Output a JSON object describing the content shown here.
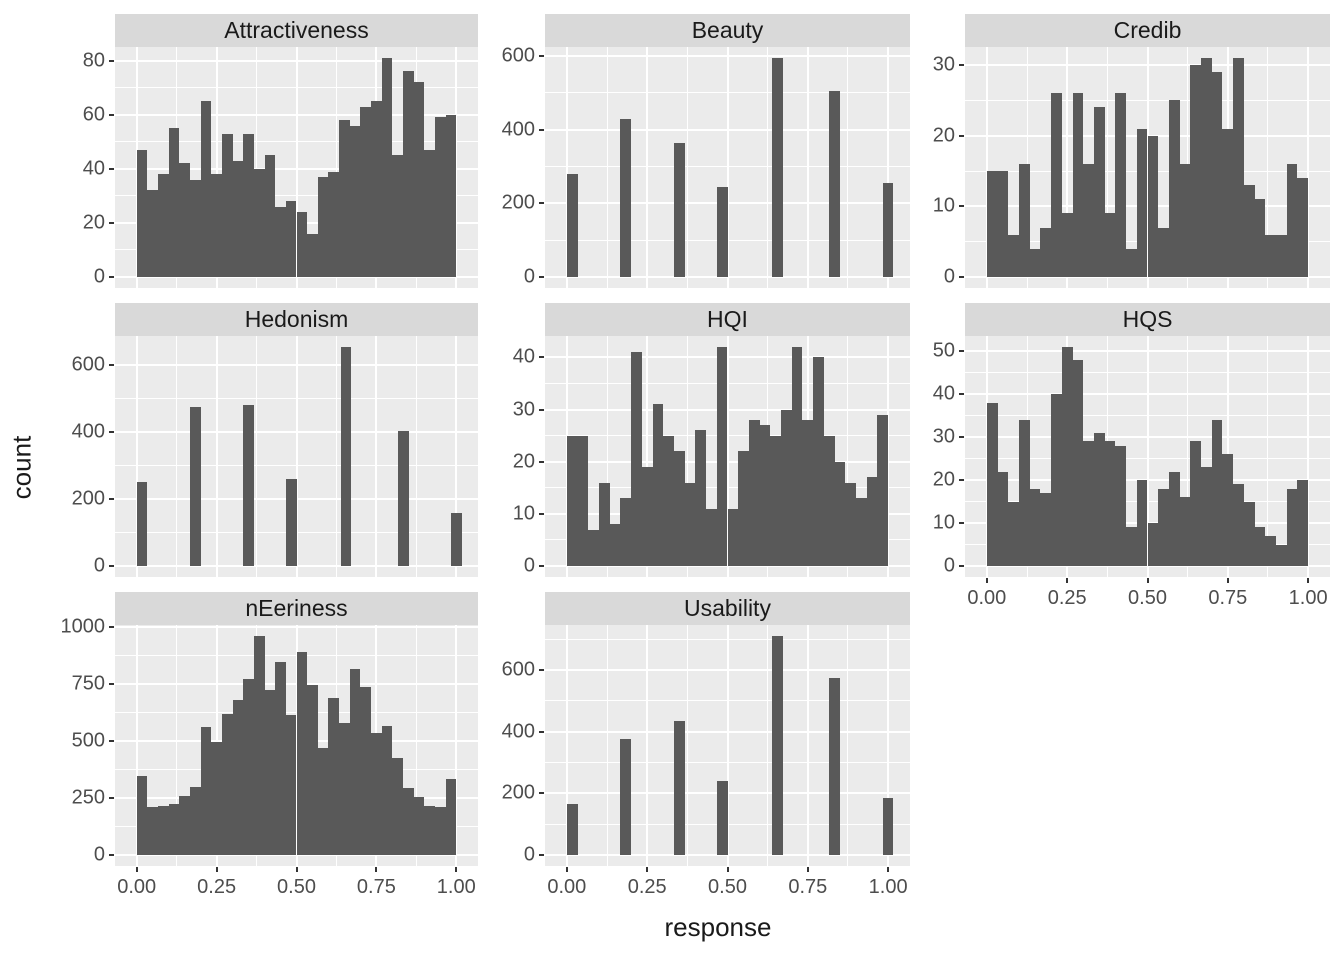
{
  "figure": {
    "y_axis_title": "count",
    "x_axis_title": "response",
    "colors": {
      "background": "#FFFFFF",
      "panel_bg": "#EBEBEB",
      "strip_bg": "#D9D9D9",
      "bar_fill": "#595959",
      "gridline": "#FFFFFF",
      "axis_text": "#4D4D4D",
      "title_text": "#1A1A1A",
      "tick_mark": "#333333"
    },
    "x_ticks": {
      "values": [
        0,
        0.25,
        0.5,
        0.75,
        1.0
      ],
      "labels": [
        "0.00",
        "0.25",
        "0.50",
        "0.75",
        "1.00"
      ]
    },
    "x_minor_ticks": [
      0.125,
      0.375,
      0.625,
      0.875
    ],
    "x_range_note": "response scale 0 to 1, 30 histogram bins, 5% expansion"
  },
  "chart_data": [
    {
      "type": "bar",
      "title": "Attractiveness",
      "row": 0,
      "col": 0,
      "xlabel": "response",
      "ylabel": "count",
      "yticks": [
        0,
        20,
        40,
        60,
        80
      ],
      "ymax": 81,
      "bin_width": 0.0333,
      "counts": [
        47,
        32,
        38,
        55,
        42,
        36,
        65,
        38,
        53,
        43,
        53,
        40,
        45,
        26,
        28,
        24,
        16,
        37,
        39,
        58,
        56,
        63,
        65,
        81,
        45,
        76,
        72,
        47,
        59,
        60
      ],
      "show_x_axis": false
    },
    {
      "type": "bar",
      "title": "Beauty",
      "row": 0,
      "col": 1,
      "xlabel": "response",
      "ylabel": "count",
      "yticks": [
        0,
        200,
        400,
        600
      ],
      "ymax": 595,
      "bin_width": 0.0333,
      "centers": [
        0.017,
        0.183,
        0.35,
        0.485,
        0.655,
        0.834,
        1.0
      ],
      "counts": [
        280,
        430,
        365,
        245,
        595,
        505,
        255
      ],
      "show_x_axis": false
    },
    {
      "type": "bar",
      "title": "Credib",
      "row": 0,
      "col": 2,
      "xlabel": "response",
      "ylabel": "count",
      "yticks": [
        0,
        10,
        20,
        30
      ],
      "ymax": 31,
      "bin_width": 0.0333,
      "counts": [
        15,
        15,
        6,
        16,
        4,
        7,
        26,
        9,
        26,
        16,
        24,
        9,
        26,
        4,
        21,
        20,
        7,
        25,
        16,
        30,
        31,
        29,
        21,
        31,
        13,
        11,
        6,
        6,
        16,
        14
      ],
      "show_x_axis": false
    },
    {
      "type": "bar",
      "title": "Hedonism",
      "row": 1,
      "col": 0,
      "xlabel": "response",
      "ylabel": "count",
      "yticks": [
        0,
        200,
        400,
        600
      ],
      "ymax": 655,
      "bin_width": 0.0333,
      "centers": [
        0.017,
        0.183,
        0.35,
        0.485,
        0.655,
        0.834,
        1.0
      ],
      "counts": [
        250,
        475,
        480,
        260,
        655,
        405,
        160
      ],
      "show_x_axis": false
    },
    {
      "type": "bar",
      "title": "HQI",
      "row": 1,
      "col": 1,
      "xlabel": "response",
      "ylabel": "count",
      "yticks": [
        0,
        10,
        20,
        30,
        40
      ],
      "ymax": 42,
      "bin_width": 0.0333,
      "counts": [
        25,
        25,
        7,
        16,
        8,
        13,
        41,
        19,
        31,
        25,
        22,
        16,
        26,
        11,
        42,
        11,
        22,
        28,
        27,
        25,
        30,
        42,
        28,
        40,
        25,
        20,
        16,
        13,
        17,
        29
      ],
      "show_x_axis": false
    },
    {
      "type": "bar",
      "title": "HQS",
      "row": 1,
      "col": 2,
      "xlabel": "response",
      "ylabel": "count",
      "yticks": [
        0,
        10,
        20,
        30,
        40,
        50
      ],
      "ymax": 51,
      "bin_width": 0.0333,
      "counts": [
        38,
        22,
        15,
        34,
        18,
        17,
        40,
        51,
        48,
        29,
        31,
        29,
        28,
        9,
        20,
        10,
        18,
        22,
        16,
        29,
        23,
        34,
        26,
        19,
        15,
        9,
        7,
        5,
        18,
        20
      ],
      "show_x_axis": true
    },
    {
      "type": "bar",
      "title": "nEeriness",
      "row": 2,
      "col": 0,
      "xlabel": "response",
      "ylabel": "count",
      "yticks": [
        0,
        250,
        500,
        750,
        1000
      ],
      "ymax": 960,
      "bin_width": 0.0333,
      "counts": [
        345,
        210,
        215,
        225,
        260,
        300,
        560,
        495,
        620,
        680,
        770,
        960,
        725,
        845,
        615,
        890,
        745,
        470,
        690,
        580,
        815,
        735,
        535,
        565,
        425,
        295,
        255,
        215,
        210,
        335
      ],
      "show_x_axis": true
    },
    {
      "type": "bar",
      "title": "Usability",
      "row": 2,
      "col": 1,
      "xlabel": "response",
      "ylabel": "count",
      "yticks": [
        0,
        200,
        400,
        600
      ],
      "ymax": 710,
      "bin_width": 0.0333,
      "centers": [
        0.017,
        0.183,
        0.35,
        0.485,
        0.655,
        0.834,
        1.0
      ],
      "counts": [
        165,
        375,
        435,
        240,
        710,
        575,
        185
      ],
      "show_x_axis": true
    }
  ]
}
